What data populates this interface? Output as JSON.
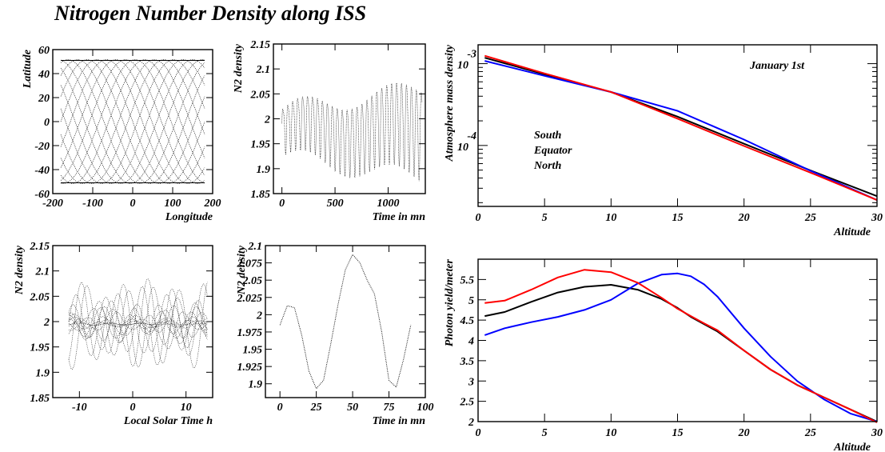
{
  "title": "Nitrogen Number Density along ISS",
  "chart_data": [
    {
      "id": "lat-lon",
      "type": "line",
      "xlabel": "Longitude",
      "ylabel": "Latitude",
      "xlim": [
        -200,
        200
      ],
      "ylim": [
        -60,
        60
      ],
      "xticks": [
        -200,
        -100,
        0,
        100,
        200
      ],
      "yticks": [
        -60,
        -40,
        -20,
        0,
        20,
        40,
        60
      ],
      "inclination_deg": 51.6,
      "orbits": 15,
      "series": [
        {
          "color": "#000000",
          "style": "dotted"
        }
      ]
    },
    {
      "id": "n2-time",
      "type": "line",
      "xlabel": "Time in mn",
      "ylabel": "N2 density",
      "xlim": [
        -80,
        1350
      ],
      "ylim": [
        1.85,
        2.15
      ],
      "xticks": [
        0,
        500,
        1000
      ],
      "yticks": [
        1.85,
        1.9,
        1.95,
        2,
        2.05,
        2.1,
        2.15
      ],
      "period_mn": 46.5,
      "series": [
        {
          "color": "#000000",
          "style": "dotted"
        }
      ]
    },
    {
      "id": "n2-lst",
      "type": "scatter",
      "xlabel": "Local Solar Time h",
      "ylabel": "N2 density",
      "xlim": [
        -15,
        15
      ],
      "ylim": [
        1.85,
        2.15
      ],
      "xticks": [
        -10,
        0,
        10
      ],
      "yticks": [
        1.85,
        1.9,
        1.95,
        2,
        2.05,
        2.1,
        2.15
      ],
      "series": [
        {
          "color": "#000000",
          "style": "dotted"
        }
      ]
    },
    {
      "id": "n2-one-orbit",
      "type": "line",
      "xlabel": "Time in mn",
      "ylabel": "N2 density",
      "xlim": [
        -10,
        100
      ],
      "ylim": [
        1.88,
        2.1
      ],
      "xticks": [
        0,
        25,
        50,
        75,
        100
      ],
      "yticks": [
        1.9,
        1.925,
        1.95,
        1.975,
        2,
        2.025,
        2.05,
        2.075,
        2.1
      ],
      "x": [
        0,
        5,
        10,
        15,
        20,
        25,
        30,
        35,
        40,
        45,
        50,
        55,
        60,
        65,
        70,
        75,
        80,
        85,
        90
      ],
      "values": [
        1.985,
        2.013,
        2.01,
        1.97,
        1.918,
        1.893,
        1.905,
        1.958,
        2.015,
        2.065,
        2.087,
        2.075,
        2.05,
        2.03,
        1.975,
        1.905,
        1.895,
        1.935,
        1.985
      ],
      "series": [
        {
          "color": "#000000",
          "style": "dotted"
        }
      ]
    },
    {
      "id": "mass-density",
      "type": "line",
      "xlabel": "Altitude",
      "ylabel": "Atmosphere mass density",
      "annotation": "January 1st",
      "xlim": [
        0,
        30
      ],
      "ylim": [
        1.8e-05,
        0.0017
      ],
      "log_y": true,
      "xticks": [
        0,
        5,
        10,
        15,
        20,
        25,
        30
      ],
      "ytick_labels": [
        {
          "base": "10",
          "exp": "-3"
        },
        {
          "base": "10",
          "exp": "-4"
        }
      ],
      "x": [
        0.5,
        5,
        10,
        15,
        20,
        25,
        30
      ],
      "series": [
        {
          "name": "South",
          "color": "#000000",
          "values": [
            0.00118,
            0.00074,
            0.00045,
            0.000225,
            0.000105,
            4.95e-05,
            2.4e-05
          ]
        },
        {
          "name": "Equator",
          "color": "#0000ff",
          "values": [
            0.00108,
            0.00071,
            0.00045,
            0.000265,
            0.000118,
            4.9e-05,
            2.15e-05
          ]
        },
        {
          "name": "North",
          "color": "#ff0000",
          "values": [
            0.00125,
            0.00076,
            0.00045,
            0.000213,
            9.85e-05,
            4.65e-05,
            2.15e-05
          ]
        }
      ]
    },
    {
      "id": "photon-yield",
      "type": "line",
      "xlabel": "Altitude",
      "ylabel": "Photon yield/meter",
      "xlim": [
        0,
        30
      ],
      "ylim": [
        2,
        6
      ],
      "xticks": [
        0,
        5,
        10,
        15,
        20,
        25,
        30
      ],
      "yticks": [
        2,
        2.5,
        3,
        3.5,
        4,
        4.5,
        5,
        5.5
      ],
      "x": [
        0.5,
        2,
        4,
        6,
        8,
        10,
        12,
        13.8,
        15,
        16,
        17,
        18,
        20,
        22,
        24,
        26,
        28,
        30
      ],
      "series": [
        {
          "name": "South",
          "color": "#000000",
          "values": [
            4.6,
            4.7,
            4.95,
            5.18,
            5.32,
            5.37,
            5.25,
            5.02,
            4.8,
            4.58,
            4.4,
            4.22,
            3.75,
            3.28,
            2.9,
            2.6,
            2.3,
            2.0
          ]
        },
        {
          "name": "Equator",
          "color": "#0000ff",
          "values": [
            4.13,
            4.3,
            4.45,
            4.58,
            4.75,
            5.0,
            5.4,
            5.62,
            5.65,
            5.58,
            5.38,
            5.08,
            4.3,
            3.6,
            3.0,
            2.55,
            2.2,
            2.0
          ]
        },
        {
          "name": "North",
          "color": "#ff0000",
          "values": [
            4.92,
            4.98,
            5.25,
            5.55,
            5.74,
            5.68,
            5.42,
            5.05,
            4.78,
            4.6,
            4.42,
            4.25,
            3.75,
            3.28,
            2.9,
            2.6,
            2.3,
            1.98
          ]
        }
      ]
    }
  ]
}
